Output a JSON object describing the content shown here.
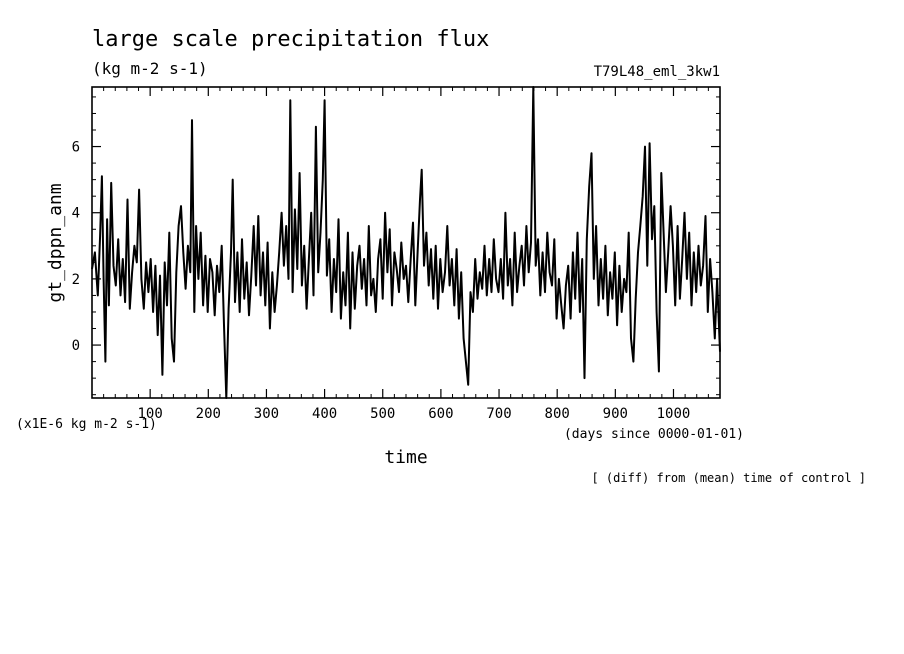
{
  "chart_data": {
    "type": "line",
    "title": "large scale precipitation flux",
    "units": "(kg m-2 s-1)",
    "experiment_label": "T79L48_eml_3kw1",
    "ylabel": "gt_dppn_anm",
    "xlabel": "time",
    "y_scale_label": "(x1E-6 kg m-2 s-1)",
    "x_units_label": "(days since 0000-01-01)",
    "footer": "[ (diff) from (mean) time of control ]",
    "xlim": [
      0,
      1080
    ],
    "ylim": [
      -1.6,
      7.8
    ],
    "x_ticks": [
      100,
      200,
      300,
      400,
      500,
      600,
      700,
      800,
      900,
      1000
    ],
    "y_ticks": [
      0,
      2,
      4,
      6
    ],
    "series": [
      {
        "values": [
          [
            0,
            2.3
          ],
          [
            5,
            2.8
          ],
          [
            10,
            1.5
          ],
          [
            14,
            3.3
          ],
          [
            17,
            5.1
          ],
          [
            20,
            2.0
          ],
          [
            23,
            -0.5
          ],
          [
            26,
            3.8
          ],
          [
            29,
            1.2
          ],
          [
            33,
            4.9
          ],
          [
            37,
            2.4
          ],
          [
            41,
            1.8
          ],
          [
            45,
            3.2
          ],
          [
            49,
            1.5
          ],
          [
            53,
            2.6
          ],
          [
            57,
            1.3
          ],
          [
            61,
            4.4
          ],
          [
            65,
            1.1
          ],
          [
            69,
            2.2
          ],
          [
            73,
            3.0
          ],
          [
            77,
            2.5
          ],
          [
            81,
            4.7
          ],
          [
            85,
            2.0
          ],
          [
            89,
            1.1
          ],
          [
            93,
            2.5
          ],
          [
            97,
            1.6
          ],
          [
            101,
            2.6
          ],
          [
            105,
            1.0
          ],
          [
            109,
            2.4
          ],
          [
            113,
            0.3
          ],
          [
            117,
            2.1
          ],
          [
            121,
            -0.9
          ],
          [
            125,
            2.5
          ],
          [
            129,
            1.2
          ],
          [
            133,
            3.4
          ],
          [
            137,
            0.2
          ],
          [
            141,
            -0.5
          ],
          [
            145,
            2.2
          ],
          [
            149,
            3.6
          ],
          [
            153,
            4.2
          ],
          [
            157,
            2.8
          ],
          [
            161,
            1.7
          ],
          [
            165,
            3.0
          ],
          [
            169,
            2.2
          ],
          [
            172,
            6.8
          ],
          [
            176,
            1.0
          ],
          [
            179,
            3.6
          ],
          [
            183,
            2.0
          ],
          [
            187,
            3.4
          ],
          [
            191,
            1.2
          ],
          [
            195,
            2.7
          ],
          [
            199,
            1.0
          ],
          [
            203,
            2.6
          ],
          [
            207,
            2.2
          ],
          [
            211,
            0.9
          ],
          [
            215,
            2.4
          ],
          [
            219,
            1.6
          ],
          [
            223,
            3.0
          ],
          [
            227,
            0.6
          ],
          [
            231,
            -1.6
          ],
          [
            235,
            1.1
          ],
          [
            239,
            2.8
          ],
          [
            242,
            5.0
          ],
          [
            246,
            1.3
          ],
          [
            250,
            2.8
          ],
          [
            254,
            1.0
          ],
          [
            258,
            3.2
          ],
          [
            262,
            1.4
          ],
          [
            266,
            2.5
          ],
          [
            270,
            0.9
          ],
          [
            274,
            2.1
          ],
          [
            278,
            3.6
          ],
          [
            282,
            1.8
          ],
          [
            286,
            3.9
          ],
          [
            290,
            1.5
          ],
          [
            294,
            2.8
          ],
          [
            298,
            1.2
          ],
          [
            302,
            3.1
          ],
          [
            306,
            0.5
          ],
          [
            310,
            2.2
          ],
          [
            314,
            1.0
          ],
          [
            318,
            1.8
          ],
          [
            322,
            2.8
          ],
          [
            326,
            4.0
          ],
          [
            330,
            2.4
          ],
          [
            334,
            3.6
          ],
          [
            338,
            2.0
          ],
          [
            341,
            7.4
          ],
          [
            345,
            1.6
          ],
          [
            349,
            4.1
          ],
          [
            353,
            2.3
          ],
          [
            357,
            5.2
          ],
          [
            361,
            1.8
          ],
          [
            365,
            3.0
          ],
          [
            369,
            1.1
          ],
          [
            373,
            2.6
          ],
          [
            377,
            4.0
          ],
          [
            381,
            1.5
          ],
          [
            385,
            6.6
          ],
          [
            389,
            2.2
          ],
          [
            393,
            3.4
          ],
          [
            397,
            5.0
          ],
          [
            400,
            7.4
          ],
          [
            404,
            2.1
          ],
          [
            408,
            3.2
          ],
          [
            412,
            1.0
          ],
          [
            416,
            2.6
          ],
          [
            420,
            1.6
          ],
          [
            424,
            3.8
          ],
          [
            428,
            0.8
          ],
          [
            432,
            2.2
          ],
          [
            436,
            1.2
          ],
          [
            440,
            3.4
          ],
          [
            444,
            0.5
          ],
          [
            448,
            2.8
          ],
          [
            452,
            1.1
          ],
          [
            456,
            2.4
          ],
          [
            460,
            3.0
          ],
          [
            464,
            1.7
          ],
          [
            468,
            2.6
          ],
          [
            472,
            1.2
          ],
          [
            476,
            3.6
          ],
          [
            480,
            1.5
          ],
          [
            484,
            2.0
          ],
          [
            488,
            1.0
          ],
          [
            492,
            2.6
          ],
          [
            496,
            3.2
          ],
          [
            500,
            1.4
          ],
          [
            504,
            4.0
          ],
          [
            508,
            2.2
          ],
          [
            512,
            3.5
          ],
          [
            516,
            1.2
          ],
          [
            520,
            2.8
          ],
          [
            524,
            2.3
          ],
          [
            528,
            1.6
          ],
          [
            532,
            3.1
          ],
          [
            536,
            2.0
          ],
          [
            540,
            2.4
          ],
          [
            544,
            1.3
          ],
          [
            548,
            2.6
          ],
          [
            552,
            3.7
          ],
          [
            556,
            1.2
          ],
          [
            560,
            2.8
          ],
          [
            564,
            4.4
          ],
          [
            567,
            5.3
          ],
          [
            571,
            2.4
          ],
          [
            575,
            3.4
          ],
          [
            579,
            1.8
          ],
          [
            583,
            2.9
          ],
          [
            587,
            1.4
          ],
          [
            591,
            3.0
          ],
          [
            595,
            1.1
          ],
          [
            599,
            2.6
          ],
          [
            603,
            1.6
          ],
          [
            607,
            2.2
          ],
          [
            611,
            3.6
          ],
          [
            615,
            1.8
          ],
          [
            619,
            2.6
          ],
          [
            623,
            1.2
          ],
          [
            627,
            2.9
          ],
          [
            631,
            0.8
          ],
          [
            635,
            2.2
          ],
          [
            639,
            0.2
          ],
          [
            643,
            -0.5
          ],
          [
            647,
            -1.2
          ],
          [
            651,
            1.6
          ],
          [
            655,
            1.0
          ],
          [
            659,
            2.6
          ],
          [
            663,
            1.4
          ],
          [
            667,
            2.2
          ],
          [
            671,
            1.7
          ],
          [
            675,
            3.0
          ],
          [
            679,
            1.5
          ],
          [
            683,
            2.6
          ],
          [
            687,
            1.6
          ],
          [
            691,
            3.2
          ],
          [
            695,
            2.0
          ],
          [
            699,
            1.6
          ],
          [
            703,
            2.6
          ],
          [
            707,
            1.4
          ],
          [
            711,
            4.0
          ],
          [
            715,
            1.8
          ],
          [
            719,
            2.6
          ],
          [
            723,
            1.2
          ],
          [
            727,
            3.4
          ],
          [
            731,
            1.6
          ],
          [
            735,
            2.4
          ],
          [
            739,
            3.0
          ],
          [
            743,
            1.8
          ],
          [
            747,
            3.6
          ],
          [
            751,
            2.2
          ],
          [
            755,
            3.1
          ],
          [
            759,
            7.8
          ],
          [
            763,
            2.4
          ],
          [
            767,
            3.2
          ],
          [
            771,
            1.5
          ],
          [
            775,
            2.8
          ],
          [
            779,
            1.6
          ],
          [
            783,
            3.4
          ],
          [
            787,
            2.2
          ],
          [
            791,
            1.8
          ],
          [
            795,
            3.2
          ],
          [
            799,
            0.8
          ],
          [
            803,
            2.0
          ],
          [
            807,
            1.2
          ],
          [
            811,
            0.5
          ],
          [
            815,
            1.8
          ],
          [
            819,
            2.4
          ],
          [
            823,
            0.8
          ],
          [
            827,
            2.8
          ],
          [
            831,
            1.4
          ],
          [
            835,
            3.4
          ],
          [
            839,
            1.0
          ],
          [
            843,
            2.6
          ],
          [
            847,
            -1.0
          ],
          [
            851,
            3.2
          ],
          [
            855,
            4.8
          ],
          [
            859,
            5.8
          ],
          [
            863,
            2.0
          ],
          [
            867,
            3.6
          ],
          [
            871,
            1.2
          ],
          [
            875,
            2.6
          ],
          [
            879,
            1.4
          ],
          [
            883,
            3.0
          ],
          [
            887,
            0.9
          ],
          [
            891,
            2.2
          ],
          [
            895,
            1.4
          ],
          [
            899,
            2.8
          ],
          [
            903,
            0.6
          ],
          [
            907,
            2.4
          ],
          [
            911,
            1.0
          ],
          [
            915,
            2.0
          ],
          [
            919,
            1.6
          ],
          [
            923,
            3.4
          ],
          [
            927,
            0.2
          ],
          [
            931,
            -0.5
          ],
          [
            935,
            1.4
          ],
          [
            939,
            2.8
          ],
          [
            943,
            3.6
          ],
          [
            947,
            4.5
          ],
          [
            951,
            6.0
          ],
          [
            955,
            2.4
          ],
          [
            959,
            6.1
          ],
          [
            963,
            3.2
          ],
          [
            967,
            4.2
          ],
          [
            971,
            1.0
          ],
          [
            975,
            -0.8
          ],
          [
            979,
            5.2
          ],
          [
            983,
            3.4
          ],
          [
            987,
            1.6
          ],
          [
            991,
            2.8
          ],
          [
            995,
            4.2
          ],
          [
            999,
            3.0
          ],
          [
            1003,
            1.2
          ],
          [
            1007,
            3.6
          ],
          [
            1011,
            1.4
          ],
          [
            1015,
            2.6
          ],
          [
            1019,
            4.0
          ],
          [
            1023,
            2.0
          ],
          [
            1027,
            3.4
          ],
          [
            1031,
            1.2
          ],
          [
            1035,
            2.8
          ],
          [
            1039,
            1.6
          ],
          [
            1043,
            3.0
          ],
          [
            1047,
            1.8
          ],
          [
            1051,
            2.4
          ],
          [
            1055,
            3.9
          ],
          [
            1059,
            1.0
          ],
          [
            1063,
            2.6
          ],
          [
            1067,
            1.6
          ],
          [
            1071,
            0.2
          ],
          [
            1075,
            2.0
          ],
          [
            1080,
            -0.2
          ]
        ]
      }
    ]
  }
}
